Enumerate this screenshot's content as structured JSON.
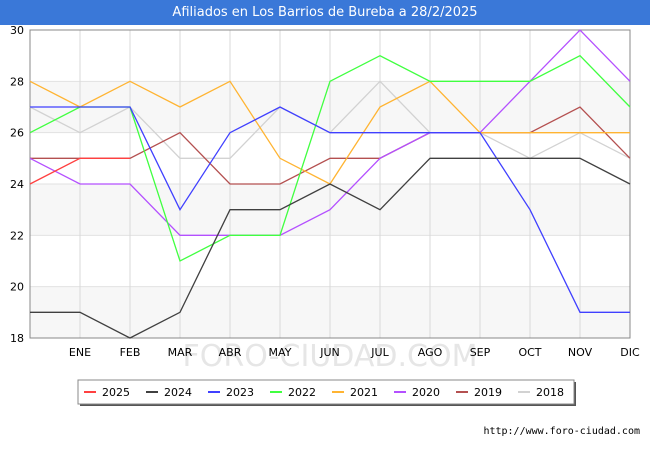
{
  "chart_data": {
    "type": "line",
    "title": "Afiliados en Los Barrios de Bureba a 28/2/2025",
    "xlabel": "",
    "ylabel": "",
    "ylim": [
      18,
      30
    ],
    "yticks": [
      18,
      20,
      22,
      24,
      26,
      28,
      30
    ],
    "categories": [
      "",
      "ENE",
      "FEB",
      "MAR",
      "ABR",
      "MAY",
      "JUN",
      "JUL",
      "AGO",
      "SEP",
      "OCT",
      "NOV",
      "DIC"
    ],
    "grid": true,
    "legend_position": "bottom",
    "watermark": "FORO-CIUDAD.COM",
    "series": [
      {
        "name": "2025",
        "color": "#ff4040",
        "values": [
          24,
          25,
          25,
          null,
          null,
          null,
          null,
          null,
          null,
          null,
          null,
          null,
          null
        ]
      },
      {
        "name": "2024",
        "color": "#404040",
        "values": [
          19,
          19,
          18,
          19,
          23,
          23,
          24,
          23,
          25,
          25,
          25,
          25,
          24
        ]
      },
      {
        "name": "2023",
        "color": "#4040ff",
        "values": [
          27,
          27,
          27,
          23,
          26,
          27,
          26,
          26,
          26,
          26,
          23,
          19,
          19
        ]
      },
      {
        "name": "2022",
        "color": "#40ff40",
        "values": [
          26,
          27,
          27,
          21,
          22,
          22,
          28,
          29,
          28,
          28,
          28,
          29,
          27
        ]
      },
      {
        "name": "2021",
        "color": "#ffb432",
        "values": [
          28,
          27,
          28,
          27,
          28,
          25,
          24,
          27,
          28,
          26,
          26,
          26,
          26
        ]
      },
      {
        "name": "2020",
        "color": "#b450ff",
        "values": [
          25,
          24,
          24,
          22,
          22,
          22,
          23,
          25,
          26,
          26,
          28,
          30,
          28
        ]
      },
      {
        "name": "2019",
        "color": "#b45050",
        "values": [
          25,
          25,
          25,
          26,
          24,
          24,
          25,
          25,
          26,
          26,
          26,
          27,
          25
        ]
      },
      {
        "name": "2018",
        "color": "#d2d2d2",
        "values": [
          27,
          26,
          27,
          25,
          25,
          27,
          26,
          28,
          26,
          26,
          25,
          26,
          25
        ]
      }
    ]
  },
  "footer": {
    "url": "http://www.foro-ciudad.com"
  }
}
